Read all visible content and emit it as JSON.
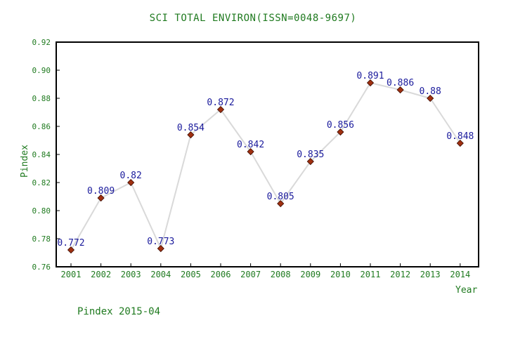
{
  "chart_data": {
    "type": "line",
    "title": "SCI TOTAL ENVIRON(ISSN=0048-9697)",
    "xlabel": "Year",
    "ylabel": "Pindex",
    "categories": [
      "2001",
      "2002",
      "2003",
      "2004",
      "2005",
      "2006",
      "2007",
      "2008",
      "2009",
      "2010",
      "2011",
      "2012",
      "2013",
      "2014"
    ],
    "values": [
      0.772,
      0.809,
      0.82,
      0.773,
      0.854,
      0.872,
      0.842,
      0.805,
      0.835,
      0.856,
      0.891,
      0.886,
      0.88,
      0.848
    ],
    "data_labels": [
      "0.772",
      "0.809",
      "0.82",
      "0.773",
      "0.854",
      "0.872",
      "0.842",
      "0.805",
      "0.835",
      "0.856",
      "0.891",
      "0.886",
      "0.88",
      "0.848"
    ],
    "ylim": [
      0.76,
      0.92
    ],
    "yticks": [
      "0.76",
      "0.78",
      "0.80",
      "0.82",
      "0.84",
      "0.86",
      "0.88",
      "0.90",
      "0.92"
    ],
    "grid": false,
    "line_color": "#d9d9d9",
    "marker_color": "#a03010",
    "label_color": "#1a1a9c",
    "axis_text_color": "#1f7a1f"
  },
  "footer": "Pindex 2015-04"
}
